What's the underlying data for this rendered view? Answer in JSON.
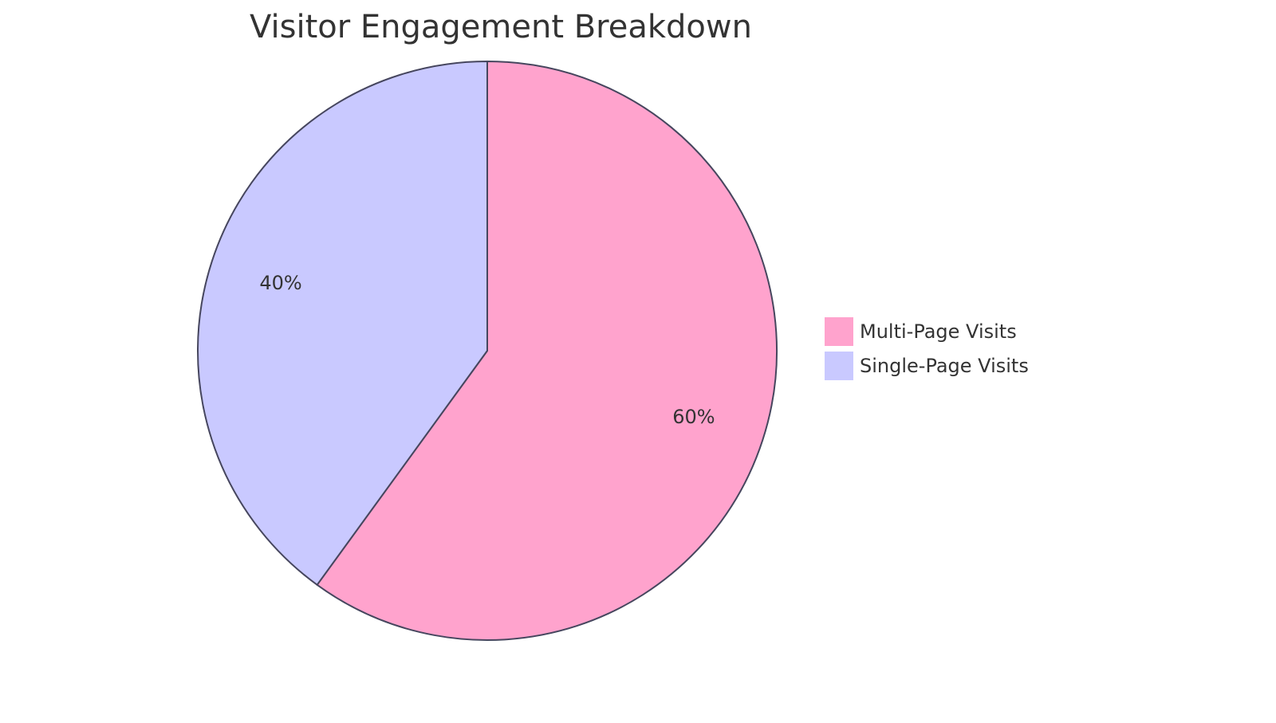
{
  "chart_data": {
    "type": "pie",
    "title": "Visitor Engagement Breakdown",
    "categories": [
      "Multi-Page Visits",
      "Single-Page Visits"
    ],
    "values": [
      60,
      40
    ],
    "value_labels": [
      "60%",
      "40%"
    ],
    "colors": [
      "#ffa3cd",
      "#c9c9ff"
    ]
  }
}
